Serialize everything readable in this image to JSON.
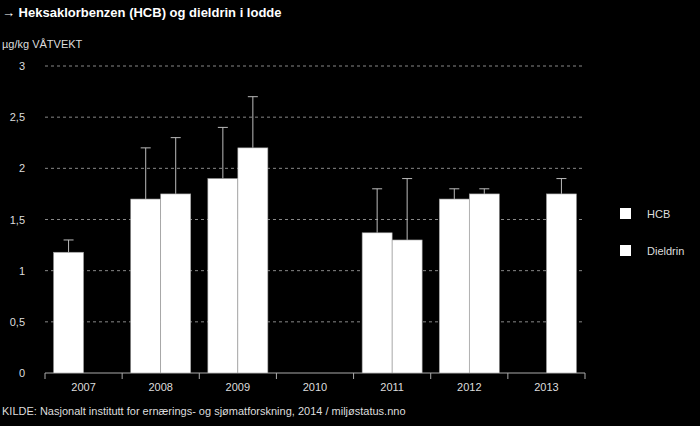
{
  "chart_data": {
    "type": "bar",
    "title": "→ Heksaklorbenzen (HCB) og dieldrin i lodde",
    "y_label": "µg/kg VÅTVEKT",
    "source": "KILDE: Nasjonalt institutt for ernærings- og sjømatforskning, 2014 / miljøstatus.nno",
    "categories": [
      "2007",
      "2008",
      "2009",
      "2010",
      "2011",
      "2012",
      "2013"
    ],
    "series": [
      {
        "name": "HCB",
        "color": "#ffffff",
        "values": [
          1.18,
          1.7,
          1.9,
          null,
          1.37,
          1.7,
          null
        ],
        "errors": [
          0.12,
          0.5,
          0.5,
          null,
          0.43,
          0.1,
          null
        ]
      },
      {
        "name": "Dieldrin",
        "color": "#ffffff",
        "values": [
          null,
          1.75,
          2.2,
          null,
          1.3,
          1.75,
          1.75
        ],
        "errors": [
          null,
          0.55,
          0.5,
          null,
          0.6,
          0.05,
          0.15
        ]
      }
    ],
    "ylim": [
      0,
      3
    ],
    "yticks": [
      0,
      {
        "value": 0.5,
        "label": "0,5"
      },
      1,
      {
        "value": 1.5,
        "label": "1,5"
      },
      2,
      {
        "value": 2.5,
        "label": "2,5"
      },
      3
    ],
    "grid": true,
    "legend": "right"
  }
}
